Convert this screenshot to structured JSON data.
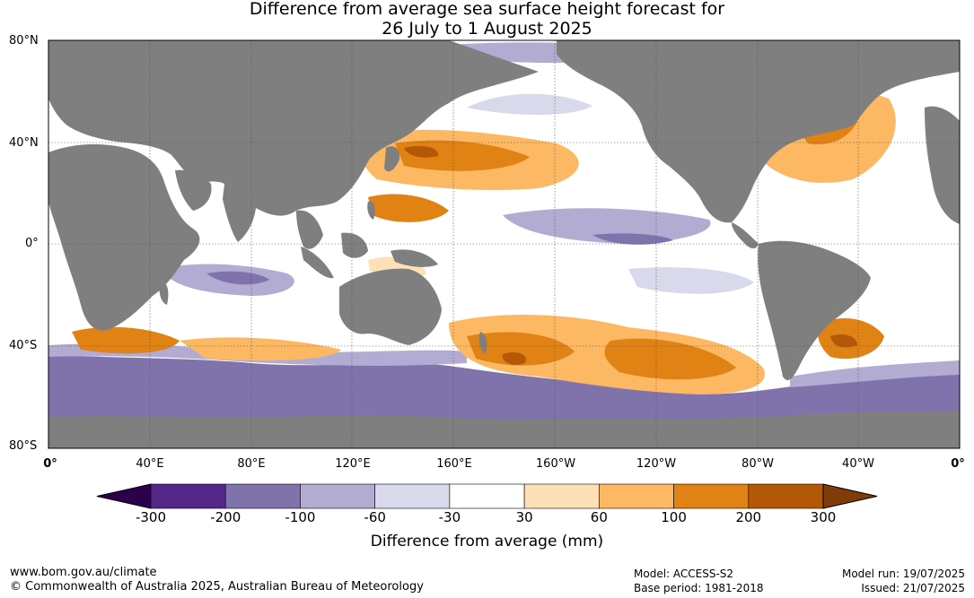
{
  "title": {
    "line1": "Difference from average sea surface height forecast for",
    "line2": "26 July to 1 August 2025"
  },
  "map": {
    "lat_labels": [
      "80°N",
      "40°N",
      "0°",
      "40°S",
      "80°S"
    ],
    "lon_labels": [
      "0°",
      "40°E",
      "80°E",
      "120°E",
      "160°E",
      "160°W",
      "120°W",
      "80°W",
      "40°W",
      "0°"
    ],
    "colors": {
      "land": "#7f7f7f",
      "ocean_neutral": "#ffffff",
      "neg_300": "#2d004b",
      "neg_200": "#542788",
      "neg_100": "#8073ac",
      "neg_60": "#b2abd2",
      "neg_30": "#d8daeb",
      "pos_30": "#fee0b6",
      "pos_60": "#fdb863",
      "pos_100": "#e08214",
      "pos_200": "#b35806",
      "pos_300": "#7f3b08"
    }
  },
  "colorbar": {
    "title": "Difference from average (mm)",
    "ticks": [
      "-300",
      "-200",
      "-100",
      "-60",
      "-30",
      "30",
      "60",
      "100",
      "200",
      "300"
    ],
    "colors": [
      "#2d004b",
      "#542788",
      "#8073ac",
      "#b2abd2",
      "#d8daeb",
      "#ffffff",
      "#fee0b6",
      "#fdb863",
      "#e08214",
      "#b35806",
      "#7f3b08"
    ]
  },
  "footer": {
    "url": "www.bom.gov.au/climate",
    "copyright": "© Commonwealth of Australia 2025, Australian Bureau of Meteorology",
    "model": "Model: ACCESS-S2",
    "base_period": "Base period: 1981-2018",
    "model_run": "Model run: 19/07/2025",
    "issued": "Issued: 21/07/2025"
  }
}
